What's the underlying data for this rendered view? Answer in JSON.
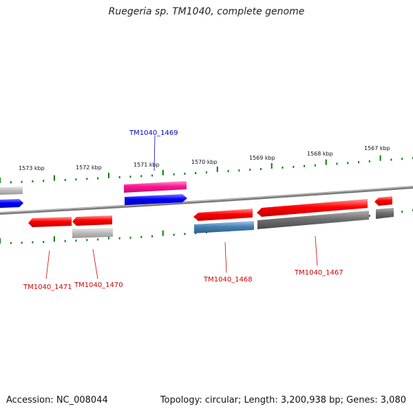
{
  "title": "Ruegeria sp. TM1040, complete genome",
  "footer": {
    "accession": "Accession: NC_008044",
    "topology": "Topology: circular; Length: 3,200,938 bp; Genes: 3,080"
  },
  "tick_labels": [
    "1573 kbp",
    "1572 kbp",
    "1571 kbp",
    "1570 kbp",
    "1569 kbp",
    "1568 kbp",
    "1567 kbp"
  ],
  "gene_labels": [
    {
      "text": "TM1040_1469",
      "color": "#0000cc"
    },
    {
      "text": "TM1040_1471",
      "color": "#cc0000"
    },
    {
      "text": "TM1040_1470",
      "color": "#cc0000"
    },
    {
      "text": "TM1040_1468",
      "color": "#cc0000"
    },
    {
      "text": "TM1040_1467",
      "color": "#cc0000"
    }
  ],
  "colors": {
    "gene_red": "#ff0000",
    "gene_blue": "#0000ff",
    "gene_pink": "#ff1493",
    "gene_steelblue": "#4682b4",
    "gene_gray": "#707070",
    "gene_lightgray": "#b8b8b8",
    "backbone": "#888888",
    "tick": "#008000"
  }
}
